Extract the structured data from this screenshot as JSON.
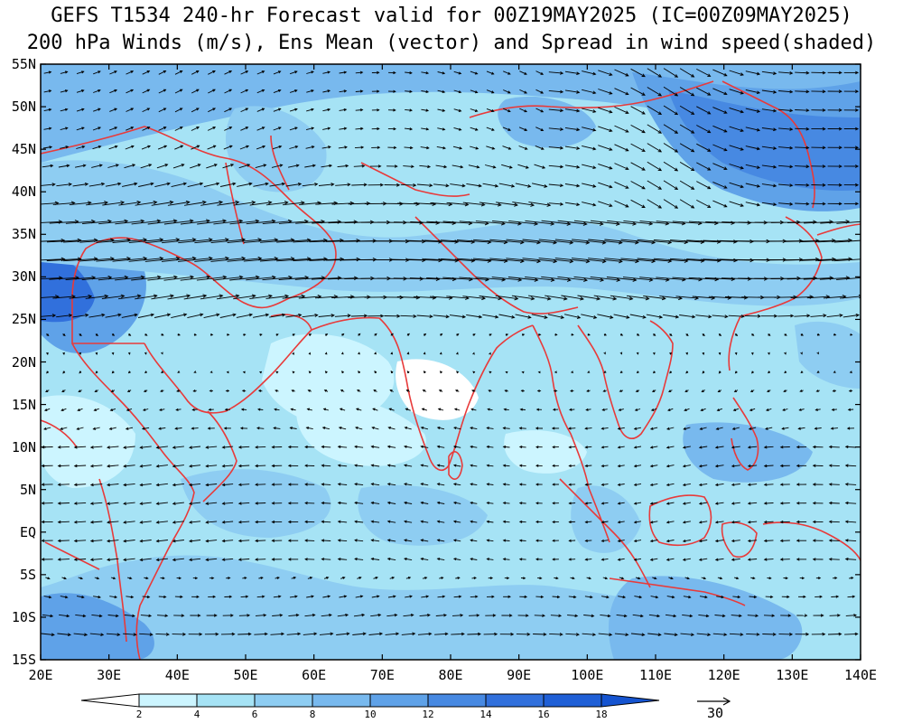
{
  "title_line1": "GEFS T1534 240-hr Forecast valid for 00Z19MAY2025 (IC=00Z09MAY2025)",
  "title_line2": "200 hPa Winds (m/s), Ens Mean (vector) and Spread in wind speed(shaded)",
  "map": {
    "lon_range": [
      20,
      140
    ],
    "lat_range": [
      -15,
      55
    ],
    "lat_labels": [
      "55N",
      "50N",
      "45N",
      "40N",
      "35N",
      "30N",
      "25N",
      "20N",
      "15N",
      "10N",
      "5N",
      "EQ",
      "5S",
      "10S",
      "15S"
    ],
    "lon_labels": [
      "20E",
      "30E",
      "40E",
      "50E",
      "60E",
      "70E",
      "80E",
      "90E",
      "100E",
      "110E",
      "120E",
      "130E",
      "140E"
    ],
    "coastline_color": "#e83a3a",
    "vector_color": "#000000"
  },
  "colorbar": {
    "labels": [
      "2",
      "4",
      "6",
      "8",
      "10",
      "12",
      "14",
      "16",
      "18"
    ],
    "colors": [
      "#ffffff",
      "#ccf5ff",
      "#a6e3f5",
      "#8ecdf2",
      "#78b9ee",
      "#5fa2e8",
      "#4789e2",
      "#3170dc",
      "#1f5fd6",
      "#1554d0"
    ]
  },
  "reference_vector": {
    "value": "30"
  }
}
